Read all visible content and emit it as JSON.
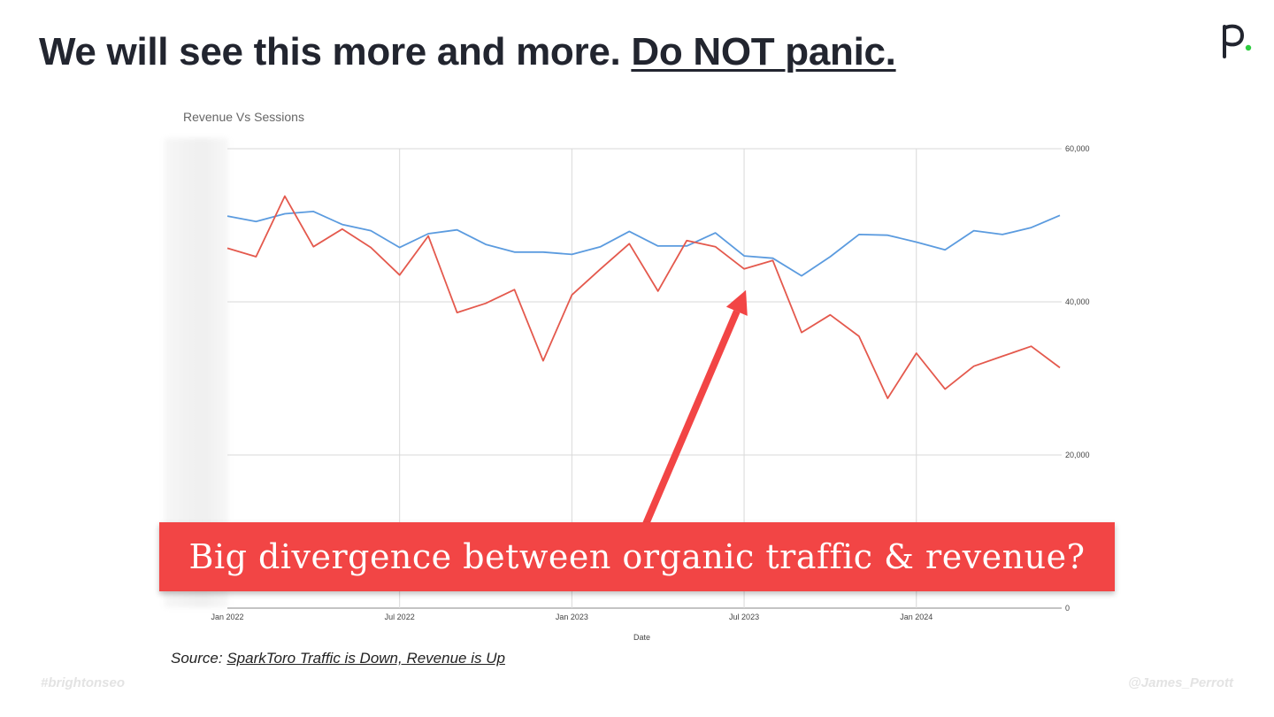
{
  "slide": {
    "title_main": "We will see this more and more.",
    "title_emphasis": "Do NOT panic.",
    "callout_text": "Big divergence between organic traffic &  revenue?",
    "source_prefix": "Source:",
    "source_link": "SparkToro Traffic is Down, Revenue is Up",
    "footer_left": "#brightonseo",
    "footer_right": "@James_Perrott",
    "accent_color": "#f24545",
    "logo_dot_color": "#2ecc40"
  },
  "chart_data": {
    "type": "line",
    "title": "Revenue Vs Sessions",
    "xlabel": "Date",
    "ylabel": "",
    "ylim": [
      0,
      60000
    ],
    "yticks": [
      "60,000",
      "40,000",
      "20,000",
      "0"
    ],
    "xticks": [
      "Jan 2022",
      "Jul 2022",
      "Jan 2023",
      "Jul 2023",
      "Jan 2024"
    ],
    "grid": true,
    "x": [
      "2022-01",
      "2022-02",
      "2022-03",
      "2022-04",
      "2022-05",
      "2022-06",
      "2022-07",
      "2022-08",
      "2022-09",
      "2022-10",
      "2022-11",
      "2022-12",
      "2023-01",
      "2023-02",
      "2023-03",
      "2023-04",
      "2023-05",
      "2023-06",
      "2023-07",
      "2023-08",
      "2023-09",
      "2023-10",
      "2023-11",
      "2023-12",
      "2024-01",
      "2024-02",
      "2024-03",
      "2024-04",
      "2024-05",
      "2024-06"
    ],
    "series": [
      {
        "color": "#5b9bdf",
        "values": [
          51200,
          50500,
          51500,
          51800,
          50100,
          49300,
          47100,
          48900,
          49400,
          47500,
          46500,
          46500,
          46200,
          47200,
          49200,
          47300,
          47300,
          49000,
          46000,
          45700,
          43400,
          45900,
          48800,
          48700,
          47800,
          46800,
          49300,
          48800,
          49700,
          51300
        ]
      },
      {
        "color": "#e4594d",
        "values": [
          47000,
          45900,
          53800,
          47200,
          49500,
          47100,
          43500,
          48600,
          38600,
          39800,
          41600,
          32300,
          40900,
          44300,
          47600,
          41400,
          48000,
          47200,
          44300,
          45400,
          36000,
          38300,
          35500,
          27400,
          33300,
          28600,
          31600,
          32900,
          34200,
          31400
        ]
      }
    ]
  }
}
